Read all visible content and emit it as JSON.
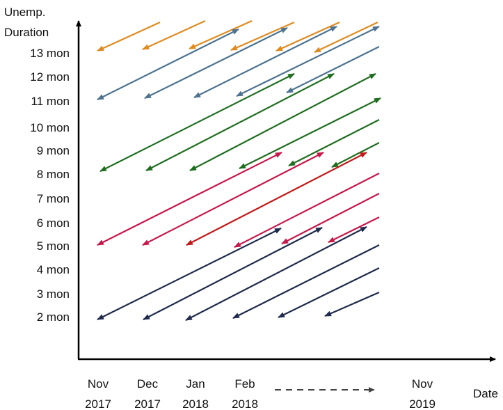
{
  "axis": {
    "y_title": [
      "Unemp.",
      "Duration"
    ],
    "y_labels": [
      "13 mon",
      "12 mon",
      "11 mon",
      "10 mon",
      "9 mon",
      "8 mon",
      "7 mon",
      "6 mon",
      "5 mon",
      "4 mon",
      "3 mon",
      "2 mon"
    ],
    "x_labels": [
      {
        "month": "Nov",
        "year": "2017"
      },
      {
        "month": "Dec",
        "year": "2017"
      },
      {
        "month": "Jan",
        "year": "2018"
      },
      {
        "month": "Feb",
        "year": "2018"
      },
      {
        "month": "Nov",
        "year": "2019"
      }
    ],
    "x_title": "Date"
  }
}
